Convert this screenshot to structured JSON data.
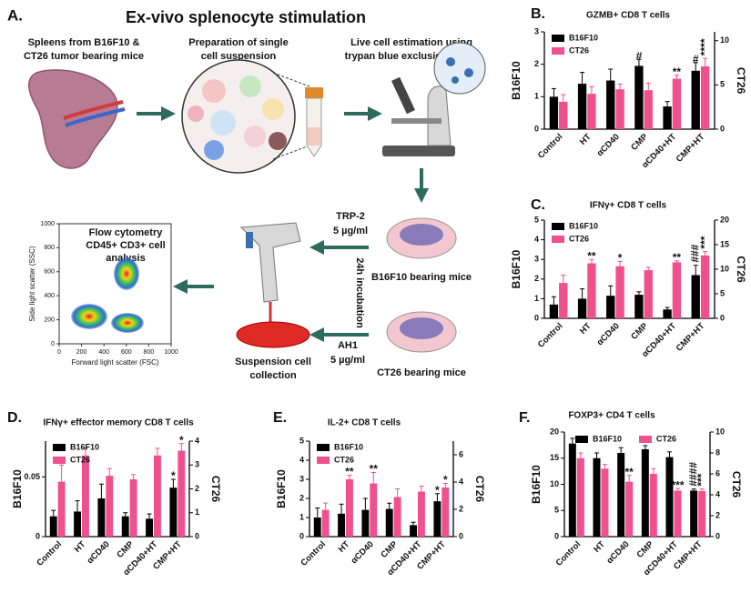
{
  "schematic": {
    "label": "A.",
    "title": "Ex-vivo splenocyte stimulation",
    "spleen_text": [
      "Spleens from B16F10 &",
      "CT26 tumor bearing mice"
    ],
    "prep_text": [
      "Preparation of single",
      "cell suspension"
    ],
    "live_text": [
      "Live cell estimation using",
      "trypan blue exclusion assay"
    ],
    "trp_text": [
      "TRP-2",
      "5 µg/ml"
    ],
    "incubation_text": "24h incubation",
    "b16_dish_text": "B16F10 bearing mice",
    "ah1_text": [
      "AH1",
      "5 µg/ml"
    ],
    "ct26_dish_text": "CT26 bearing mice",
    "collection_text": [
      "Suspension cell",
      "collection"
    ],
    "flow_text": [
      "Flow cytometry",
      "CD45+ CD3+ cell",
      "analysis"
    ],
    "flow_plot": {
      "x_label": "Forward light scatter (FSC)",
      "y_label": "Side light scatter (SSC)",
      "xlim": [
        0,
        1000
      ],
      "ylim": [
        0,
        1000
      ],
      "xticks": [
        0,
        200,
        400,
        600,
        800,
        1000
      ],
      "yticks": [
        0,
        200,
        400,
        600,
        800,
        1000
      ]
    }
  },
  "chart_data": [
    {
      "type": "bar",
      "label": "B.",
      "title": "GZMB+ CD8 T cells",
      "y_label": "B16F10",
      "y2_label": "CT26",
      "legend": "upper left",
      "categories": [
        "Control",
        "HT",
        "αCD40",
        "CMP",
        "αCD40+HT",
        "CMP+HT"
      ],
      "series": [
        {
          "name": "B16F10",
          "color": "#000000",
          "values": [
            1.0,
            1.4,
            1.5,
            1.95,
            0.7,
            1.8
          ],
          "errors": [
            0.25,
            0.35,
            0.35,
            0.2,
            0.15,
            0.25
          ]
        },
        {
          "name": "CT26",
          "color": "#f0508c",
          "axis": "y2",
          "values": [
            3.1,
            4.0,
            4.5,
            4.4,
            5.7,
            7.1
          ],
          "errors": [
            0.8,
            0.8,
            0.6,
            0.8,
            0.4,
            0.9
          ]
        }
      ],
      "ylim": [
        0,
        3
      ],
      "yticks": [
        0,
        1,
        2,
        3
      ],
      "y2lim": [
        0,
        11
      ],
      "y2ticks": [
        0,
        5,
        10
      ],
      "annotations": [
        {
          "text": "#",
          "category": "CMP",
          "series": "B16F10"
        },
        {
          "text": "**",
          "category": "αCD40+HT",
          "series": "CT26"
        },
        {
          "text": "#",
          "category": "CMP+HT",
          "series": "B16F10"
        },
        {
          "text": "****",
          "category": "CMP+HT",
          "series": "CT26"
        }
      ]
    },
    {
      "type": "bar",
      "label": "C.",
      "title": "IFNγ+ CD8 T cells",
      "y_label": "B16F10",
      "y2_label": "CT26",
      "legend": "upper left",
      "categories": [
        "Control",
        "HT",
        "αCD40",
        "CMP",
        "αCD40+HT",
        "CMP+HT"
      ],
      "series": [
        {
          "name": "B16F10",
          "color": "#000000",
          "values": [
            0.7,
            1.0,
            1.15,
            1.2,
            0.45,
            2.2
          ],
          "errors": [
            0.4,
            0.5,
            0.5,
            0.15,
            0.1,
            0.5
          ]
        },
        {
          "name": "CT26",
          "color": "#f0508c",
          "axis": "y2",
          "values": [
            7.2,
            11.2,
            10.6,
            9.8,
            11.4,
            12.8
          ],
          "errors": [
            1.6,
            0.8,
            1.0,
            0.6,
            0.3,
            0.8
          ]
        }
      ],
      "ylim": [
        0,
        5
      ],
      "yticks": [
        0,
        1,
        2,
        3,
        4,
        5
      ],
      "y2lim": [
        0,
        20
      ],
      "y2ticks": [
        0,
        5,
        10,
        15,
        20
      ],
      "annotations": [
        {
          "text": "**",
          "category": "HT",
          "series": "CT26"
        },
        {
          "text": "*",
          "category": "αCD40",
          "series": "CT26"
        },
        {
          "text": "**",
          "category": "αCD40+HT",
          "series": "CT26"
        },
        {
          "text": "###",
          "category": "CMP+HT",
          "series": "B16F10"
        },
        {
          "text": "***",
          "category": "CMP+HT",
          "series": "CT26"
        }
      ]
    },
    {
      "type": "bar",
      "label": "D.",
      "title": "IFNγ+ effector memory CD8 T cells",
      "y_label": "B16F10",
      "y2_label": "CT26",
      "legend": "upper left",
      "categories": [
        "Control",
        "HT",
        "αCD40",
        "CMP",
        "αCD40+HT",
        "CMP+HT"
      ],
      "series": [
        {
          "name": "B16F10",
          "color": "#000000",
          "values": [
            0.017,
            0.021,
            0.032,
            0.017,
            0.015,
            0.041
          ],
          "errors": [
            0.005,
            0.009,
            0.012,
            0.003,
            0.004,
            0.007
          ]
        },
        {
          "name": "CT26",
          "color": "#f0508c",
          "axis": "y2",
          "values": [
            2.3,
            3.4,
            2.55,
            2.4,
            3.4,
            3.6
          ],
          "errors": [
            0.7,
            0.3,
            0.3,
            0.2,
            0.3,
            0.3
          ]
        }
      ],
      "ylim": [
        0,
        0.08
      ],
      "yticks": [
        0,
        0.05
      ],
      "y2lim": [
        0,
        4
      ],
      "y2ticks": [
        0,
        1,
        2,
        3,
        4
      ],
      "annotations": [
        {
          "text": "*",
          "category": "CMP+HT",
          "series": "B16F10"
        },
        {
          "text": "*",
          "category": "CMP+HT",
          "series": "CT26"
        }
      ]
    },
    {
      "type": "bar",
      "label": "E.",
      "title": "IL-2+ CD8 T cells",
      "y_label": "B16F10",
      "y2_label": "CT26",
      "legend": "upper left",
      "categories": [
        "Control",
        "HT",
        "αCD40",
        "CMP",
        "αCD40+HT",
        "CMP+HT"
      ],
      "series": [
        {
          "name": "B16F10",
          "color": "#000000",
          "values": [
            1.0,
            1.2,
            1.4,
            1.45,
            0.6,
            1.85
          ],
          "errors": [
            0.5,
            0.5,
            0.6,
            0.3,
            0.15,
            0.4
          ]
        },
        {
          "name": "CT26",
          "color": "#f0508c",
          "axis": "y2",
          "values": [
            1.96,
            4.2,
            3.9,
            2.9,
            3.3,
            3.6
          ],
          "errors": [
            0.5,
            0.3,
            0.8,
            0.6,
            0.4,
            0.3
          ]
        }
      ],
      "ylim": [
        0,
        5
      ],
      "yticks": [
        0,
        1,
        2,
        3,
        4,
        5
      ],
      "y2lim": [
        0,
        7
      ],
      "y2ticks": [
        0,
        2,
        4,
        6
      ],
      "annotations": [
        {
          "text": "**",
          "category": "HT",
          "series": "CT26"
        },
        {
          "text": "**",
          "category": "αCD40",
          "series": "CT26"
        },
        {
          "text": "*",
          "category": "CMP+HT",
          "series": "B16F10"
        },
        {
          "text": "*",
          "category": "CMP+HT",
          "series": "CT26"
        }
      ]
    },
    {
      "type": "bar",
      "label": "F.",
      "title": "FOXP3+ CD4 T cells",
      "y_label": "B16F10",
      "y2_label": "CT26",
      "legend": "top",
      "categories": [
        "Control",
        "HT",
        "αCD40",
        "CMP",
        "αCD40+HT",
        "CMP+HT"
      ],
      "series": [
        {
          "name": "B16F10",
          "color": "#000000",
          "values": [
            17.8,
            15,
            16,
            16.7,
            15.2,
            8.8
          ],
          "errors": [
            1,
            1,
            1,
            0.7,
            1,
            0.3
          ]
        },
        {
          "name": "CT26",
          "color": "#f0508c",
          "axis": "y2",
          "values": [
            7.5,
            6.5,
            5.25,
            6,
            4.4,
            4.35
          ],
          "errors": [
            0.5,
            0.4,
            0.6,
            0.5,
            0.2,
            0.2
          ]
        }
      ],
      "ylim": [
        0,
        20
      ],
      "yticks": [
        0,
        5,
        10,
        15,
        20
      ],
      "y2lim": [
        0,
        10
      ],
      "y2ticks": [
        0,
        2,
        4,
        6,
        8,
        10
      ],
      "annotations": [
        {
          "text": "**",
          "category": "αCD40",
          "series": "CT26"
        },
        {
          "text": "***",
          "category": "αCD40+HT",
          "series": "CT26"
        },
        {
          "text": "####",
          "category": "CMP+HT",
          "series": "B16F10"
        },
        {
          "text": "***",
          "category": "CMP+HT",
          "series": "CT26"
        }
      ]
    }
  ]
}
